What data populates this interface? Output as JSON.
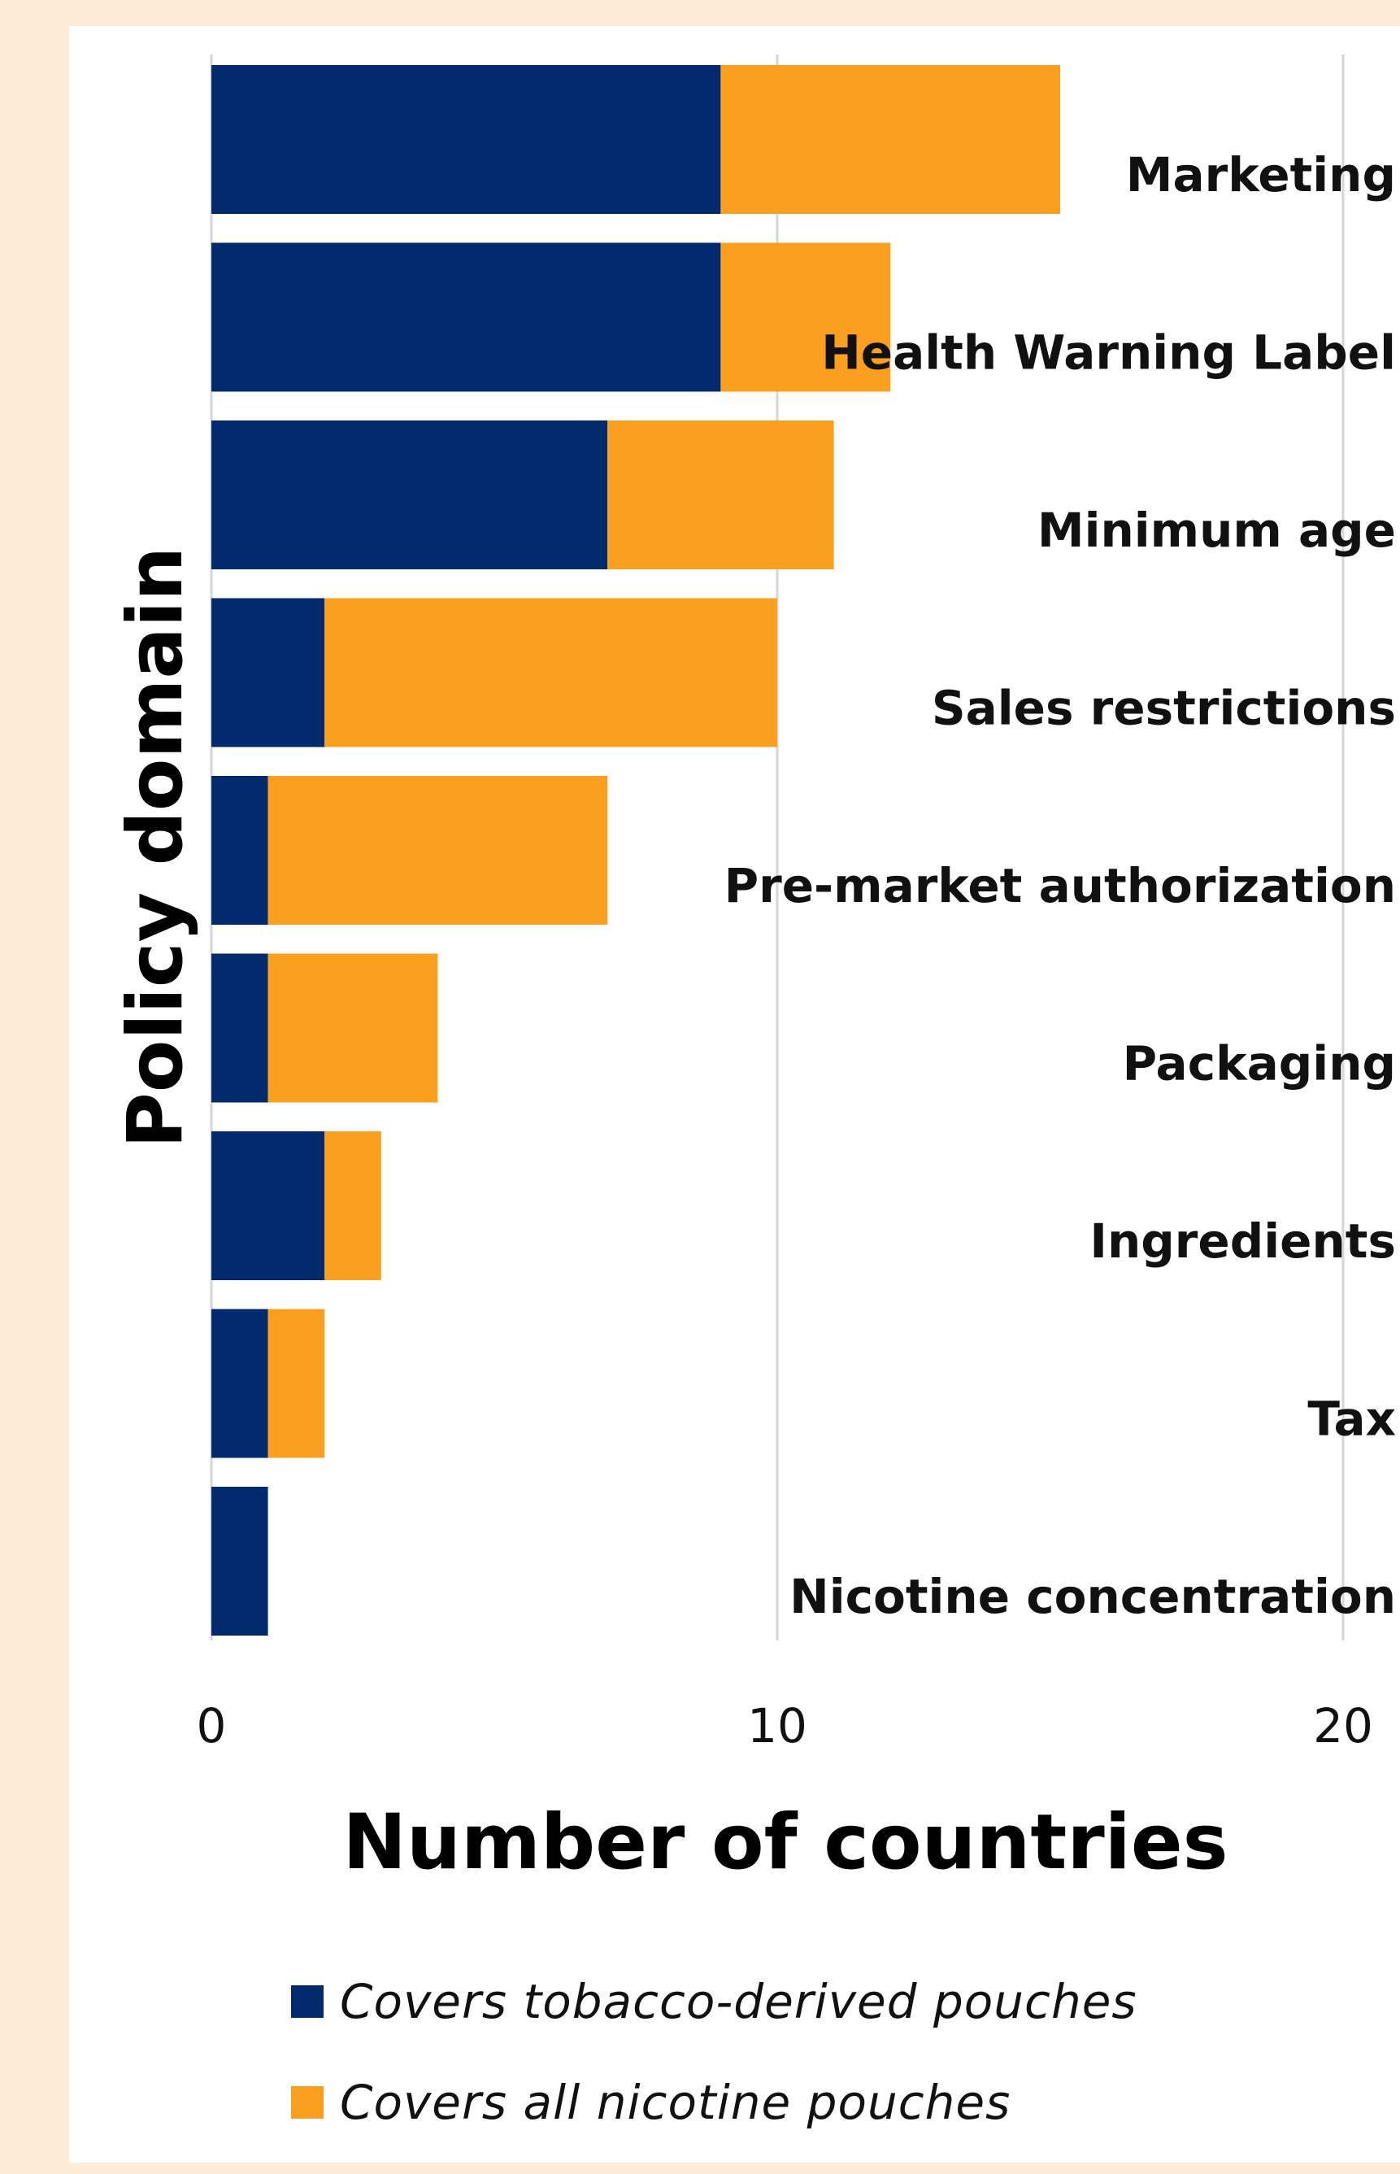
{
  "chart_data": {
    "type": "bar",
    "orientation": "horizontal",
    "stacked": true,
    "categories": [
      "Marketing",
      "Health Warning Label",
      "Minimum age",
      "Sales restrictions",
      "Pre-market authorization",
      "Packaging",
      "Ingredients",
      "Tax",
      "Nicotine concentration"
    ],
    "series": [
      {
        "name": "Covers tobacco-derived pouches",
        "color": "#022b6e",
        "values": [
          9,
          9,
          7,
          2,
          1,
          1,
          2,
          1,
          1
        ]
      },
      {
        "name": "Covers all nicotine pouches",
        "color": "#fb9f20",
        "values": [
          6,
          3,
          4,
          8,
          6,
          3,
          1,
          1,
          0
        ]
      }
    ],
    "xlabel": "Number of countries",
    "ylabel": "Policy domain",
    "xlim": [
      0,
      20
    ],
    "xticks": [
      "0",
      "10",
      "20"
    ],
    "grid": "vertical",
    "legend": "bottom"
  },
  "page": {
    "background": "#fdebd7",
    "panel": "#ffffff"
  }
}
